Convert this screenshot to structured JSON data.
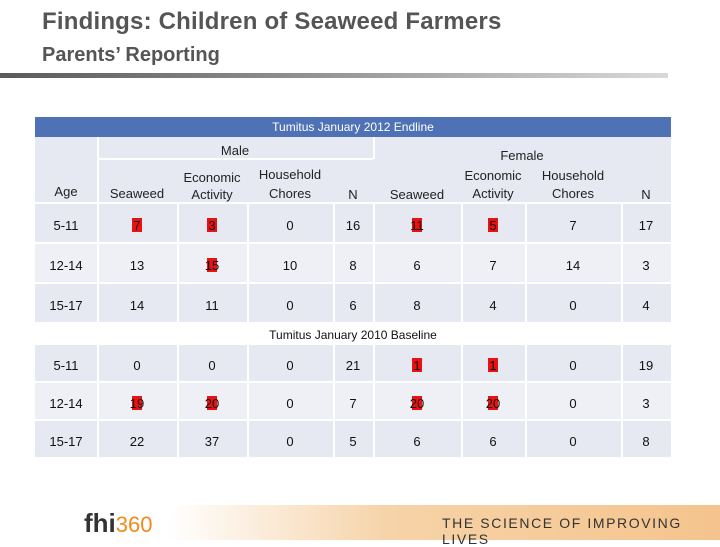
{
  "title": "Findings: Children of Seaweed Farmers",
  "subtitle": "Parents’ Reporting",
  "table": {
    "endline_label": "Tumitus January 2012 Endline",
    "baseline_label": "Tumitus January 2010 Baseline",
    "group_male": "Male",
    "group_female": "Female",
    "col_age": "Age",
    "col_seaweed": "Seaweed",
    "col_econ_1": "Economic",
    "col_econ_2": "Activity",
    "col_house_1": "Household",
    "col_house_2": "Chores",
    "col_n": "N",
    "endline_rows": [
      {
        "age": "5-11",
        "vals": [
          "7",
          "3",
          "0",
          "16",
          "11",
          "5",
          "7",
          "17"
        ],
        "red": [
          true,
          true,
          false,
          false,
          true,
          true,
          false,
          false
        ]
      },
      {
        "age": "12-14",
        "vals": [
          "13",
          "15",
          "10",
          "8",
          "6",
          "7",
          "14",
          "3"
        ],
        "red": [
          false,
          true,
          false,
          false,
          false,
          false,
          false,
          false
        ]
      },
      {
        "age": "15-17",
        "vals": [
          "14",
          "11",
          "0",
          "6",
          "8",
          "4",
          "0",
          "4"
        ],
        "red": [
          false,
          false,
          false,
          false,
          false,
          false,
          false,
          false
        ]
      }
    ],
    "baseline_rows": [
      {
        "age": "5-11",
        "vals": [
          "0",
          "0",
          "0",
          "21",
          "1",
          "1",
          "0",
          "19"
        ],
        "red": [
          false,
          false,
          false,
          false,
          true,
          true,
          false,
          false
        ]
      },
      {
        "age": "12-14",
        "vals": [
          "19",
          "20",
          "0",
          "7",
          "20",
          "20",
          "0",
          "3"
        ],
        "red": [
          true,
          true,
          false,
          false,
          true,
          true,
          false,
          false
        ]
      },
      {
        "age": "15-17",
        "vals": [
          "22",
          "37",
          "0",
          "5",
          "6",
          "6",
          "0",
          "8"
        ],
        "red": [
          false,
          false,
          false,
          false,
          false,
          false,
          false,
          false
        ]
      }
    ]
  },
  "footer": {
    "logo_text": "fhi",
    "logo_num": "360",
    "tagline": "THE SCIENCE OF IMPROVING LIVES",
    "accent_color": "#f08a1c"
  }
}
